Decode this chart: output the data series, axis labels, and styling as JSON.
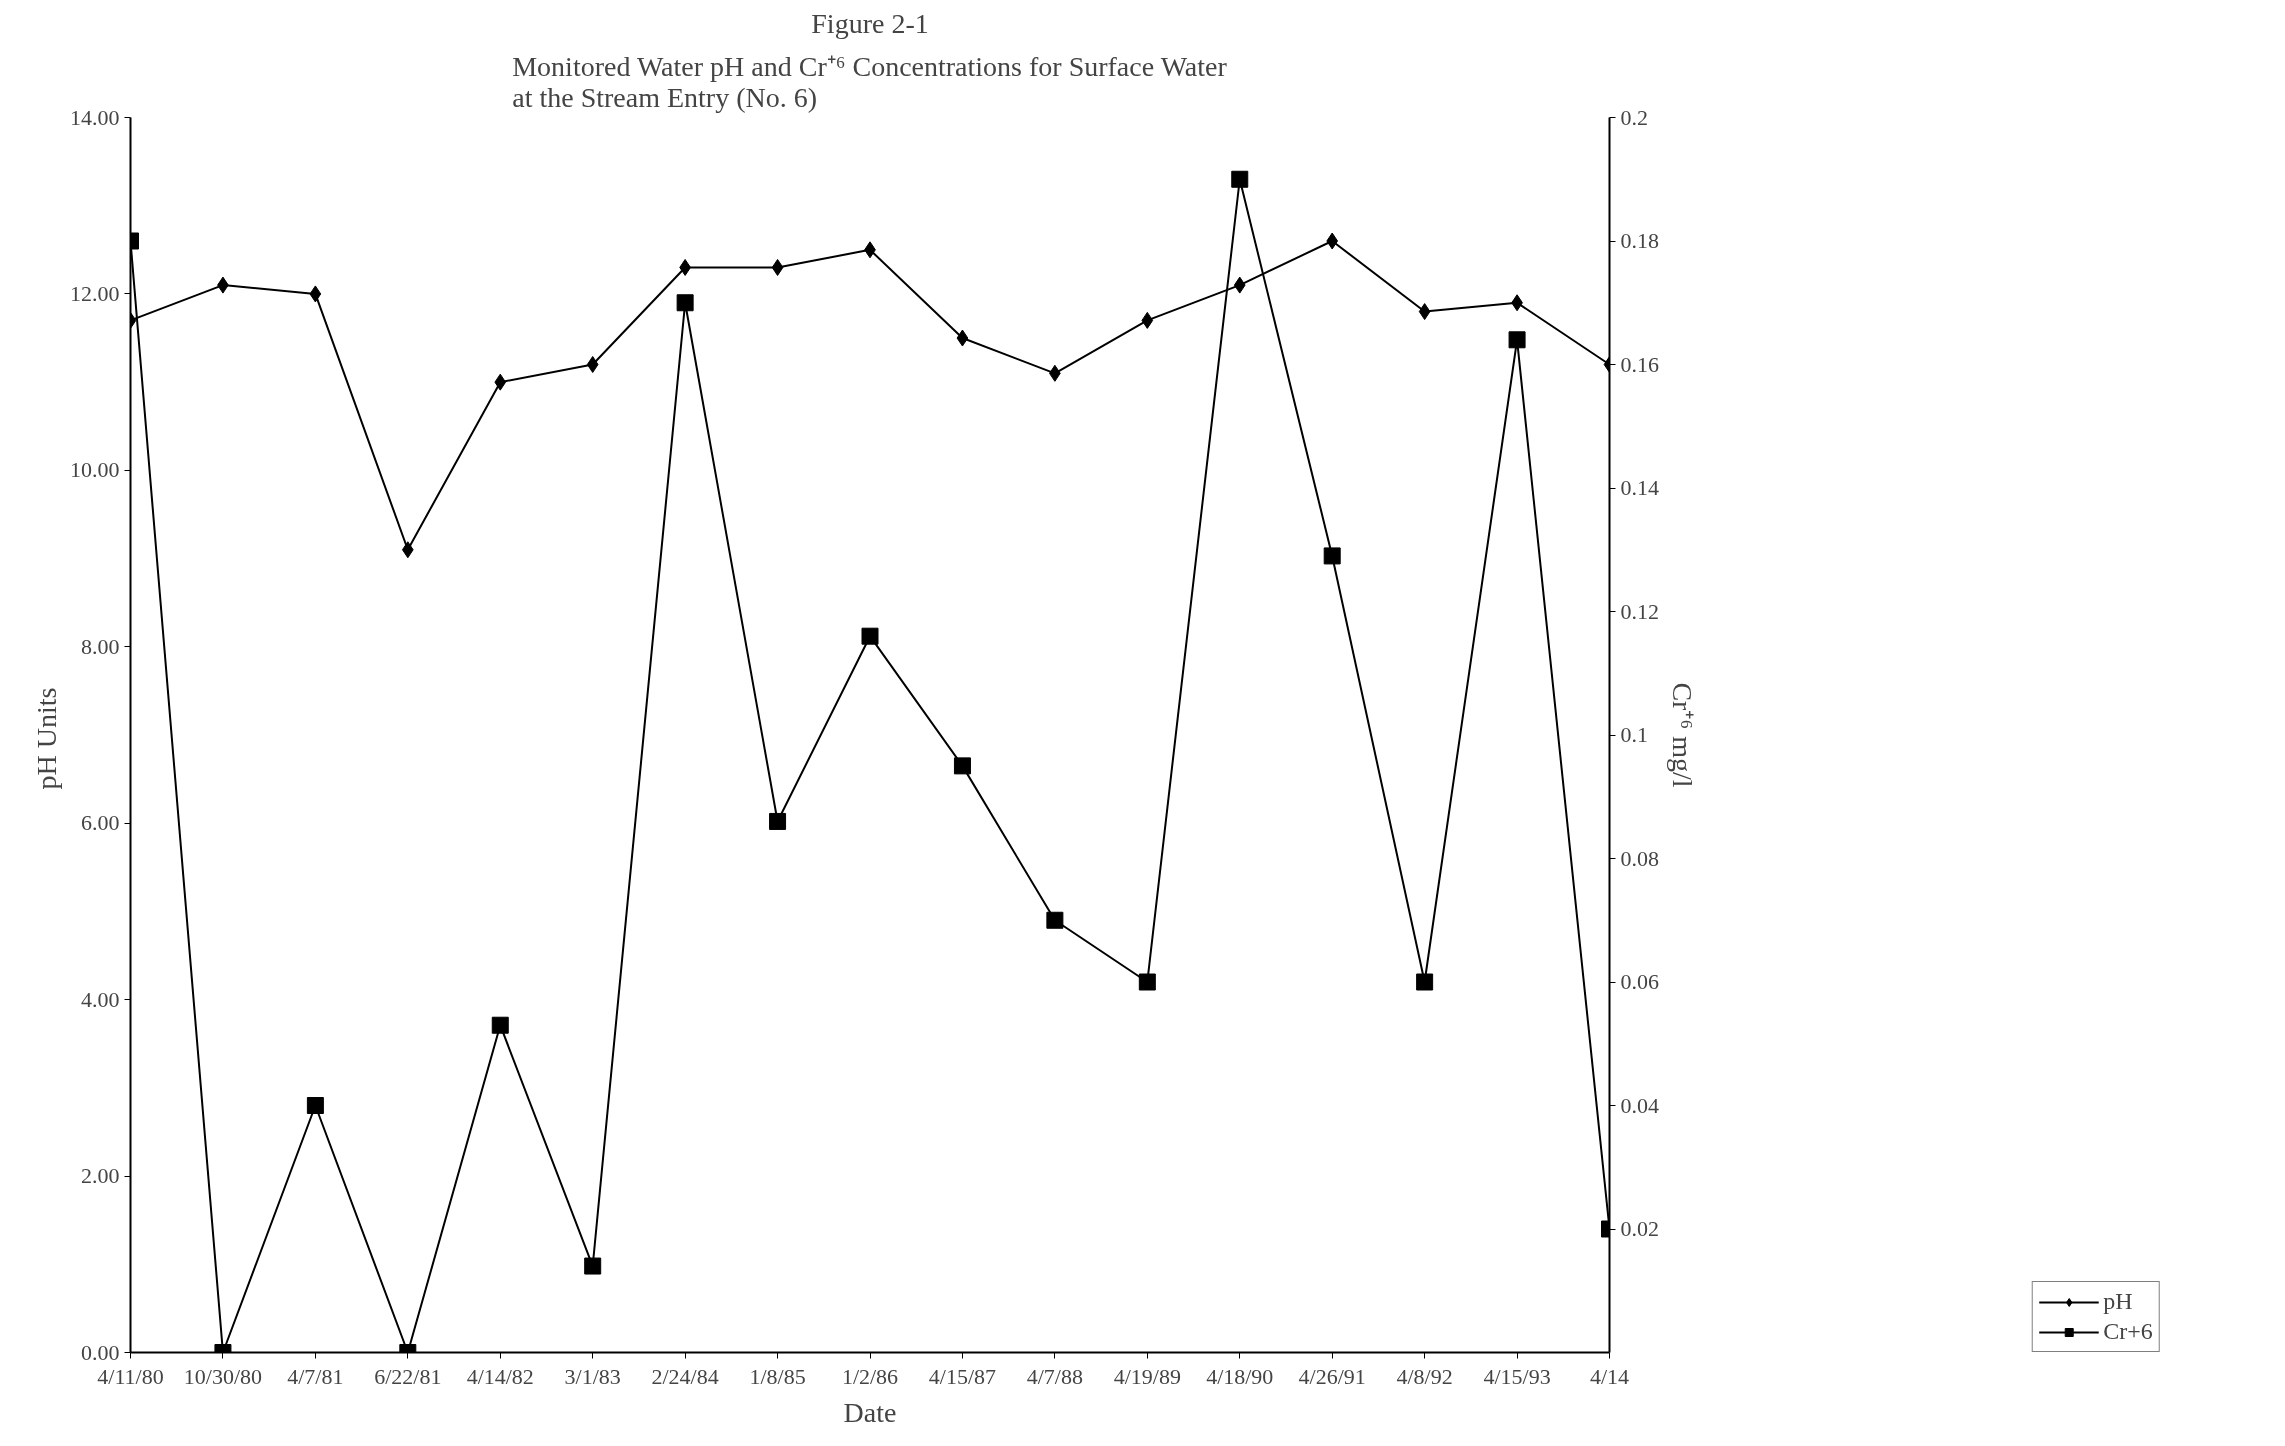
{
  "chart_data": {
    "type": "line",
    "title": "Figure 2-1",
    "subtitle": "Monitored Water pH and Cr⁺⁶ Concentrations for Surface Water\nat the Stream Entry (No. 6)",
    "xlabel": "Date",
    "ylabel": "pH  Units",
    "y2label": "Cr⁺⁶ mg/l",
    "categories": [
      "4/11/80",
      "10/30/80",
      "4/7/81",
      "6/22/81",
      "4/14/82",
      "3/1/83",
      "2/24/84",
      "1/8/85",
      "1/2/86",
      "4/15/87",
      "4/7/88",
      "4/19/89",
      "4/18/90",
      "4/26/91",
      "4/8/92",
      "4/15/93",
      "4/14"
    ],
    "series": [
      {
        "name": "pH",
        "color": "#000000",
        "marker": "diamond",
        "values": [
          11.7,
          12.1,
          12.0,
          9.1,
          11.0,
          11.2,
          12.3,
          12.3,
          12.5,
          11.5,
          11.1,
          11.7,
          12.1,
          12.6,
          11.8,
          11.9,
          11.2
        ]
      },
      {
        "name": "Cr+6",
        "color": "#000000",
        "marker": "square",
        "axis": "y2",
        "values": [
          0.18,
          0.0,
          0.04,
          0.0,
          0.053,
          0.014,
          0.17,
          0.086,
          0.116,
          0.095,
          0.07,
          0.06,
          0.19,
          0.129,
          0.06,
          0.164,
          0.02
        ]
      }
    ],
    "ylim": [
      0,
      14
    ],
    "yticks": [
      {
        "value": 0,
        "label": "0.00"
      },
      {
        "value": 2,
        "label": "2.00"
      },
      {
        "value": 4,
        "label": "4.00"
      },
      {
        "value": 6,
        "label": "6.00"
      },
      {
        "value": 8,
        "label": "8.00"
      },
      {
        "value": 10,
        "label": "10.00"
      },
      {
        "value": 12,
        "label": "12.00"
      },
      {
        "value": 14,
        "label": "14.00"
      }
    ],
    "y2lim": [
      0,
      0.2
    ],
    "y2ticks": [
      0.02,
      0.04,
      0.06,
      0.08,
      {
        "value": 0.1,
        "label": "0.1"
      },
      0.12,
      0.14,
      0.16,
      0.18,
      {
        "value": 0.2,
        "label": "0.2"
      }
    ],
    "grid": false,
    "legend": "bottom right",
    "line_style": "solid"
  }
}
